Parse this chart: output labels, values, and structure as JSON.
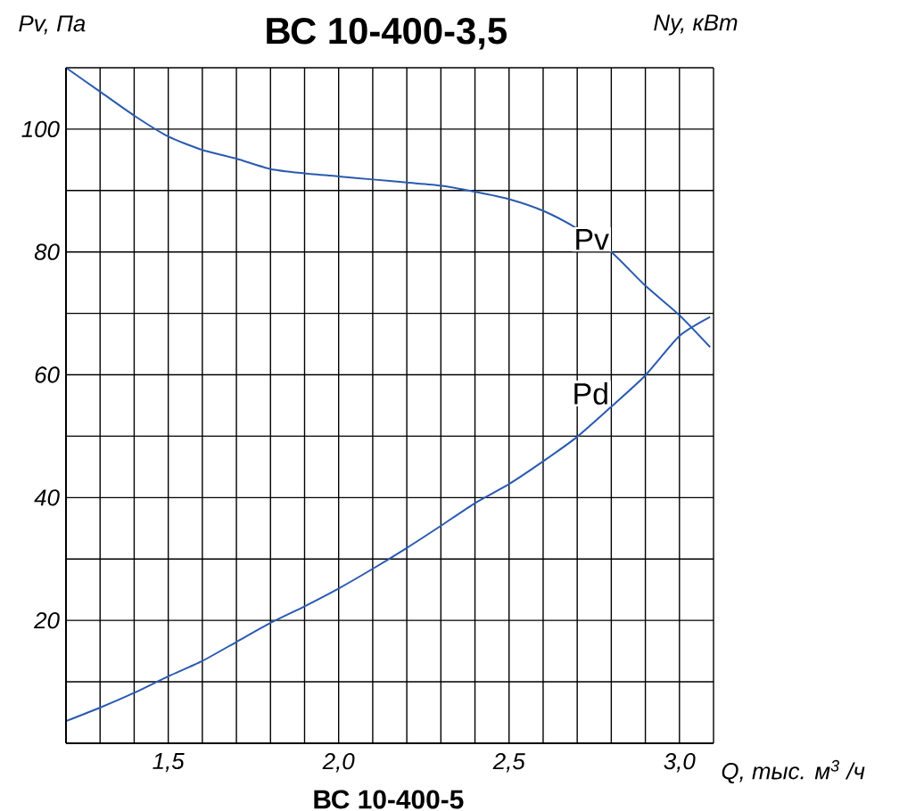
{
  "chart_data": {
    "type": "line",
    "title": "ВС 10-400-3,5",
    "xlabel": "Q, тыс. м$^{3}$ /ч",
    "ylabel": "Pv, Па",
    "y2label": "Ny, кВт",
    "annotations": [
      "ВС 10-400-5"
    ],
    "xlim": [
      1.2,
      3.1
    ],
    "xticks": [
      {
        "value": 1.2,
        "label": null
      },
      {
        "value": 1.3,
        "label": null
      },
      {
        "value": 1.4,
        "label": null
      },
      {
        "value": 1.5,
        "label": "1,5"
      },
      {
        "value": 1.6,
        "label": null
      },
      {
        "value": 1.7,
        "label": null
      },
      {
        "value": 1.8,
        "label": null
      },
      {
        "value": 1.9,
        "label": null
      },
      {
        "value": 2.0,
        "label": "2,0"
      },
      {
        "value": 2.1,
        "label": null
      },
      {
        "value": 2.2,
        "label": null
      },
      {
        "value": 2.3,
        "label": null
      },
      {
        "value": 2.4,
        "label": null
      },
      {
        "value": 2.5,
        "label": "2,5"
      },
      {
        "value": 2.6,
        "label": null
      },
      {
        "value": 2.7,
        "label": null
      },
      {
        "value": 2.8,
        "label": null
      },
      {
        "value": 2.9,
        "label": null
      },
      {
        "value": 3.0,
        "label": "3,0"
      },
      {
        "value": 3.1,
        "label": null
      }
    ],
    "ylim": [
      0,
      110
    ],
    "yticks": [
      {
        "value": 10,
        "label": null
      },
      20,
      {
        "value": 30,
        "label": null
      },
      40,
      {
        "value": 50,
        "label": null
      },
      60,
      {
        "value": 70,
        "label": null
      },
      80,
      {
        "value": 90,
        "label": null
      },
      100,
      {
        "value": 110,
        "label": null
      }
    ],
    "grid": true,
    "marker": "none",
    "line_style": "solid",
    "series": [
      {
        "name": "Pv",
        "color": "#2a5ab0",
        "x": [
          1.2,
          1.3,
          1.4,
          1.5,
          1.6,
          1.7,
          1.8,
          1.9,
          2.0,
          2.1,
          2.2,
          2.3,
          2.4,
          2.5,
          2.6,
          2.7,
          2.8,
          2.9,
          3.0,
          3.09
        ],
        "values": [
          110,
          106.1,
          102.2,
          98.8,
          96.6,
          95.2,
          93.5,
          92.8,
          92.3,
          91.8,
          91.3,
          90.8,
          89.8,
          88.6,
          86.7,
          83.8,
          80.0,
          74.5,
          69.7,
          64.5
        ]
      },
      {
        "name": "Pd",
        "color": "#2a5ab0",
        "x": [
          1.2,
          1.3,
          1.4,
          1.5,
          1.6,
          1.7,
          1.8,
          1.9,
          2.0,
          2.1,
          2.2,
          2.3,
          2.4,
          2.5,
          2.6,
          2.7,
          2.8,
          2.9,
          3.0,
          3.09
        ],
        "values": [
          3.6,
          5.8,
          8.2,
          10.9,
          13.4,
          16.5,
          19.6,
          22.3,
          25.2,
          28.4,
          31.8,
          35.4,
          39.1,
          42.2,
          45.9,
          49.9,
          54.8,
          59.9,
          66.3,
          69.4
        ]
      }
    ]
  }
}
